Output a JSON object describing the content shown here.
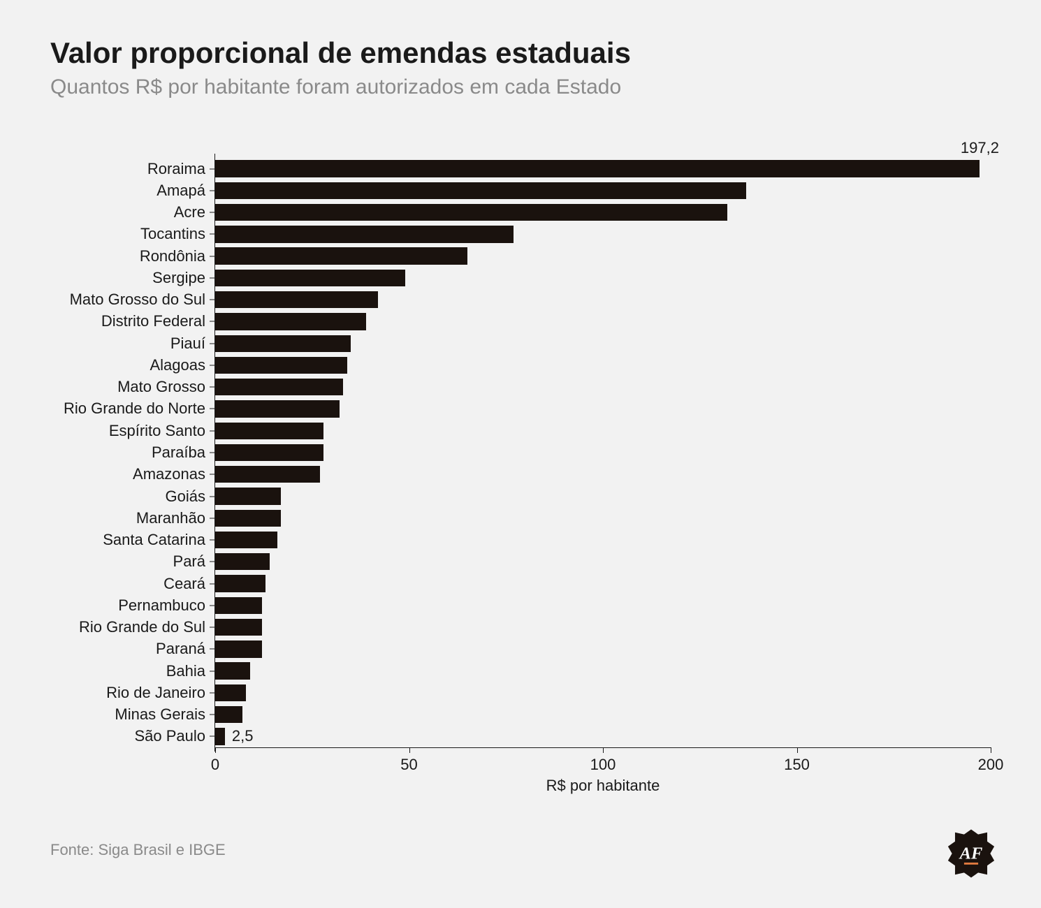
{
  "title": "Valor proporcional de emendas estaduais",
  "subtitle": "Quantos R$ por habitante foram autorizados em cada Estado",
  "source": "Fonte: Siga Brasil e IBGE",
  "chart": {
    "type": "bar-horizontal",
    "x_title": "R$ por habitante",
    "xlim": [
      0,
      200
    ],
    "xticks": [
      0,
      50,
      100,
      150,
      200
    ],
    "bar_color": "#1a120e",
    "background_color": "#f2f2f2",
    "axis_color": "#1a1a1a",
    "title_fontsize": 42,
    "subtitle_fontsize": 30,
    "label_fontsize": 22,
    "tick_fontsize": 22,
    "bar_fill_ratio": 0.78,
    "categories": [
      "Roraima",
      "Amapá",
      "Acre",
      "Tocantins",
      "Rondônia",
      "Sergipe",
      "Mato Grosso do Sul",
      "Distrito Federal",
      "Piauí",
      "Alagoas",
      "Mato Grosso",
      "Rio Grande do Norte",
      "Espírito Santo",
      "Paraíba",
      "Amazonas",
      "Goiás",
      "Maranhão",
      "Santa Catarina",
      "Pará",
      "Ceará",
      "Pernambuco",
      "Rio Grande do Sul",
      "Paraná",
      "Bahia",
      "Rio de Janeiro",
      "Minas Gerais",
      "São Paulo"
    ],
    "values": [
      197.2,
      137,
      132,
      77,
      65,
      49,
      42,
      39,
      35,
      34,
      33,
      32,
      28,
      28,
      27,
      17,
      17,
      16,
      14,
      13,
      12,
      12,
      12,
      9,
      8,
      7,
      2.5
    ],
    "value_annotations": [
      {
        "index": 0,
        "text": "197,2",
        "placement": "above"
      },
      {
        "index": 26,
        "text": "2,5",
        "placement": "right"
      }
    ]
  },
  "logo": {
    "initials": "AF",
    "bg": "#1a120e",
    "fg": "#ffffff",
    "accent": "#e07a3f"
  }
}
